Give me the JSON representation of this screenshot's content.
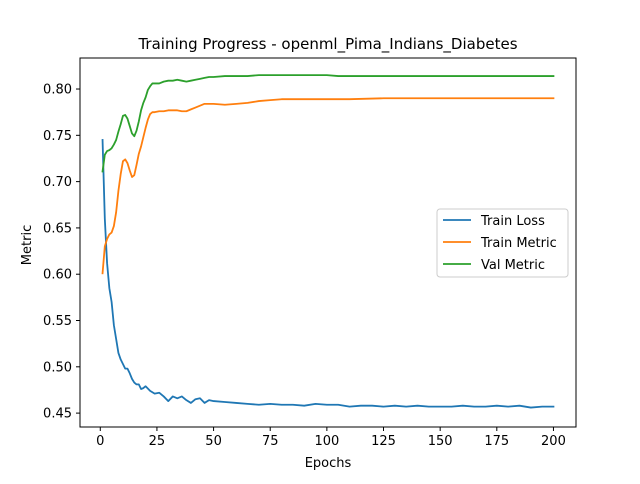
{
  "chart_data": {
    "type": "line",
    "title": "Training Progress - openml_Pima_Indians_Diabetes",
    "xlabel": "Epochs",
    "ylabel": "Metric",
    "xlim": [
      -8.95,
      209.95
    ],
    "ylim": [
      0.435,
      0.8335
    ],
    "xticks": [
      0,
      25,
      50,
      75,
      100,
      125,
      150,
      175,
      200
    ],
    "yticks": [
      0.45,
      0.5,
      0.55,
      0.6,
      0.65,
      0.7,
      0.75,
      0.8
    ],
    "ytick_labels": [
      "0.45",
      "0.50",
      "0.55",
      "0.60",
      "0.65",
      "0.70",
      "0.75",
      "0.80"
    ],
    "grid": false,
    "legend_placement": "center-right",
    "series": [
      {
        "name": "Train Loss",
        "color": "#1f77b4",
        "points": [
          [
            1,
            0.745
          ],
          [
            2,
            0.66
          ],
          [
            3,
            0.612
          ],
          [
            4,
            0.585
          ],
          [
            5,
            0.57
          ],
          [
            6,
            0.545
          ],
          [
            7,
            0.53
          ],
          [
            8,
            0.515
          ],
          [
            9,
            0.508
          ],
          [
            10,
            0.503
          ],
          [
            11,
            0.498
          ],
          [
            12,
            0.498
          ],
          [
            13,
            0.493
          ],
          [
            14,
            0.487
          ],
          [
            15,
            0.483
          ],
          [
            16,
            0.481
          ],
          [
            17,
            0.481
          ],
          [
            18,
            0.476
          ],
          [
            19,
            0.477
          ],
          [
            20,
            0.479
          ],
          [
            22,
            0.474
          ],
          [
            24,
            0.471
          ],
          [
            26,
            0.472
          ],
          [
            28,
            0.468
          ],
          [
            30,
            0.463
          ],
          [
            32,
            0.468
          ],
          [
            34,
            0.466
          ],
          [
            36,
            0.468
          ],
          [
            38,
            0.464
          ],
          [
            40,
            0.461
          ],
          [
            42,
            0.465
          ],
          [
            44,
            0.466
          ],
          [
            46,
            0.461
          ],
          [
            48,
            0.464
          ],
          [
            50,
            0.463
          ],
          [
            55,
            0.462
          ],
          [
            60,
            0.461
          ],
          [
            65,
            0.46
          ],
          [
            70,
            0.459
          ],
          [
            75,
            0.46
          ],
          [
            80,
            0.459
          ],
          [
            85,
            0.459
          ],
          [
            90,
            0.458
          ],
          [
            95,
            0.46
          ],
          [
            100,
            0.459
          ],
          [
            105,
            0.459
          ],
          [
            110,
            0.457
          ],
          [
            115,
            0.458
          ],
          [
            120,
            0.458
          ],
          [
            125,
            0.457
          ],
          [
            130,
            0.458
          ],
          [
            135,
            0.457
          ],
          [
            140,
            0.458
          ],
          [
            145,
            0.457
          ],
          [
            150,
            0.457
          ],
          [
            155,
            0.457
          ],
          [
            160,
            0.458
          ],
          [
            165,
            0.457
          ],
          [
            170,
            0.457
          ],
          [
            175,
            0.458
          ],
          [
            180,
            0.457
          ],
          [
            185,
            0.458
          ],
          [
            190,
            0.456
          ],
          [
            195,
            0.457
          ],
          [
            200,
            0.457
          ]
        ]
      },
      {
        "name": "Train Metric",
        "color": "#ff7f0e",
        "points": [
          [
            1,
            0.601
          ],
          [
            2,
            0.63
          ],
          [
            3,
            0.638
          ],
          [
            4,
            0.643
          ],
          [
            5,
            0.645
          ],
          [
            6,
            0.652
          ],
          [
            7,
            0.667
          ],
          [
            8,
            0.69
          ],
          [
            9,
            0.708
          ],
          [
            10,
            0.722
          ],
          [
            11,
            0.724
          ],
          [
            12,
            0.72
          ],
          [
            13,
            0.712
          ],
          [
            14,
            0.705
          ],
          [
            15,
            0.707
          ],
          [
            16,
            0.718
          ],
          [
            17,
            0.73
          ],
          [
            18,
            0.738
          ],
          [
            19,
            0.748
          ],
          [
            20,
            0.758
          ],
          [
            21,
            0.767
          ],
          [
            22,
            0.773
          ],
          [
            23,
            0.775
          ],
          [
            24,
            0.775
          ],
          [
            26,
            0.776
          ],
          [
            28,
            0.776
          ],
          [
            30,
            0.777
          ],
          [
            32,
            0.777
          ],
          [
            34,
            0.777
          ],
          [
            36,
            0.776
          ],
          [
            38,
            0.776
          ],
          [
            40,
            0.778
          ],
          [
            42,
            0.78
          ],
          [
            44,
            0.782
          ],
          [
            46,
            0.784
          ],
          [
            48,
            0.784
          ],
          [
            50,
            0.784
          ],
          [
            55,
            0.783
          ],
          [
            60,
            0.784
          ],
          [
            65,
            0.785
          ],
          [
            70,
            0.787
          ],
          [
            75,
            0.788
          ],
          [
            80,
            0.789
          ],
          [
            90,
            0.789
          ],
          [
            100,
            0.789
          ],
          [
            110,
            0.789
          ],
          [
            125,
            0.79
          ],
          [
            140,
            0.79
          ],
          [
            150,
            0.79
          ],
          [
            170,
            0.79
          ],
          [
            185,
            0.79
          ],
          [
            200,
            0.79
          ]
        ]
      },
      {
        "name": "Val Metric",
        "color": "#2ca02c",
        "points": [
          [
            1,
            0.711
          ],
          [
            2,
            0.729
          ],
          [
            3,
            0.733
          ],
          [
            4,
            0.734
          ],
          [
            5,
            0.736
          ],
          [
            6,
            0.74
          ],
          [
            7,
            0.745
          ],
          [
            8,
            0.754
          ],
          [
            9,
            0.762
          ],
          [
            10,
            0.771
          ],
          [
            11,
            0.772
          ],
          [
            12,
            0.768
          ],
          [
            13,
            0.76
          ],
          [
            14,
            0.752
          ],
          [
            15,
            0.749
          ],
          [
            16,
            0.755
          ],
          [
            17,
            0.765
          ],
          [
            18,
            0.777
          ],
          [
            19,
            0.785
          ],
          [
            20,
            0.791
          ],
          [
            21,
            0.799
          ],
          [
            22,
            0.803
          ],
          [
            23,
            0.806
          ],
          [
            24,
            0.806
          ],
          [
            26,
            0.806
          ],
          [
            28,
            0.808
          ],
          [
            30,
            0.809
          ],
          [
            32,
            0.809
          ],
          [
            34,
            0.81
          ],
          [
            36,
            0.809
          ],
          [
            38,
            0.808
          ],
          [
            40,
            0.809
          ],
          [
            42,
            0.81
          ],
          [
            44,
            0.811
          ],
          [
            46,
            0.812
          ],
          [
            48,
            0.813
          ],
          [
            50,
            0.813
          ],
          [
            55,
            0.814
          ],
          [
            60,
            0.814
          ],
          [
            65,
            0.814
          ],
          [
            70,
            0.815
          ],
          [
            75,
            0.815
          ],
          [
            80,
            0.815
          ],
          [
            90,
            0.815
          ],
          [
            100,
            0.815
          ],
          [
            105,
            0.814
          ],
          [
            110,
            0.814
          ],
          [
            120,
            0.814
          ],
          [
            130,
            0.814
          ],
          [
            140,
            0.814
          ],
          [
            150,
            0.814
          ],
          [
            170,
            0.814
          ],
          [
            185,
            0.814
          ],
          [
            200,
            0.814
          ]
        ]
      }
    ]
  }
}
